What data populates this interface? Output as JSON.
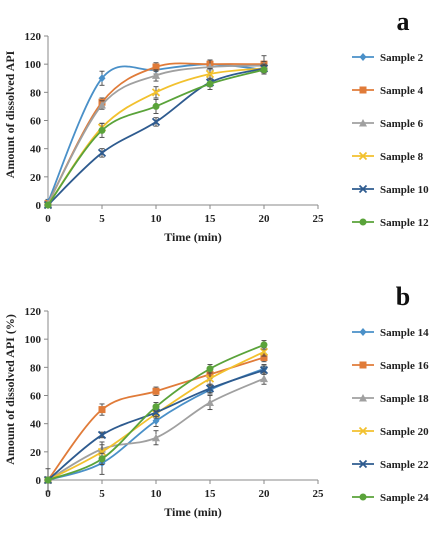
{
  "chart_data": [
    {
      "type": "line",
      "panel_label": "a",
      "xlabel": "Time (min)",
      "ylabel": "Amount of  dissolved  API",
      "xlim": [
        0,
        25
      ],
      "ylim": [
        0,
        120
      ],
      "xticks": [
        0,
        5,
        10,
        15,
        20,
        25
      ],
      "yticks": [
        0,
        20,
        40,
        60,
        80,
        100,
        120
      ],
      "x": [
        0,
        5,
        10,
        15,
        20
      ],
      "series": [
        {
          "name": "Sample 2",
          "color": "#4a90c8",
          "marker": "diamond",
          "values": [
            2,
            90,
            96,
            100,
            96
          ],
          "errors": [
            2,
            5,
            3,
            3,
            3
          ]
        },
        {
          "name": "Sample 4",
          "color": "#e07b39",
          "marker": "square",
          "values": [
            1,
            73,
            98,
            100,
            100
          ],
          "errors": [
            1,
            3,
            3,
            3,
            6
          ]
        },
        {
          "name": "Sample 6",
          "color": "#a0a0a0",
          "marker": "triangle",
          "values": [
            1,
            71,
            92,
            98,
            99
          ],
          "errors": [
            1,
            3,
            4,
            5,
            3
          ]
        },
        {
          "name": "Sample 8",
          "color": "#f2c12e",
          "marker": "x",
          "values": [
            0,
            55,
            80,
            93,
            97
          ],
          "errors": [
            1,
            3,
            4,
            4,
            3
          ]
        },
        {
          "name": "Sample 10",
          "color": "#2e5b8f",
          "marker": "x",
          "values": [
            0,
            37,
            59,
            87,
            97
          ],
          "errors": [
            1,
            3,
            3,
            3,
            3
          ]
        },
        {
          "name": "Sample 12",
          "color": "#5aa33a",
          "marker": "circle",
          "values": [
            0,
            53,
            70,
            86,
            96
          ],
          "errors": [
            1,
            5,
            5,
            4,
            3
          ]
        }
      ],
      "legend": "right"
    },
    {
      "type": "line",
      "panel_label": "b",
      "xlabel": "Time (min)",
      "ylabel": "Amount of  dissolved  API (%)",
      "xlim": [
        0,
        25
      ],
      "ylim": [
        0,
        120
      ],
      "xticks": [
        0,
        5,
        10,
        15,
        20,
        25
      ],
      "yticks": [
        0,
        20,
        40,
        60,
        80,
        100,
        120
      ],
      "x": [
        0,
        5,
        10,
        15,
        20
      ],
      "series": [
        {
          "name": "Sample 14",
          "color": "#4a90c8",
          "marker": "diamond",
          "values": [
            0,
            12,
            42,
            64,
            79
          ],
          "errors": [
            2,
            8,
            4,
            3,
            3
          ]
        },
        {
          "name": "Sample 16",
          "color": "#e07b39",
          "marker": "square",
          "values": [
            0,
            50,
            63,
            75,
            87
          ],
          "errors": [
            2,
            4,
            3,
            3,
            3
          ]
        },
        {
          "name": "Sample 18",
          "color": "#a0a0a0",
          "marker": "triangle",
          "values": [
            0,
            22,
            30,
            55,
            72
          ],
          "errors": [
            8,
            5,
            5,
            5,
            4
          ]
        },
        {
          "name": "Sample 20",
          "color": "#f2c12e",
          "marker": "x",
          "values": [
            0,
            20,
            47,
            72,
            91
          ],
          "errors": [
            2,
            5,
            3,
            4,
            3
          ]
        },
        {
          "name": "Sample 22",
          "color": "#2e5b8f",
          "marker": "x",
          "values": [
            0,
            32,
            48,
            65,
            78
          ],
          "errors": [
            2,
            2,
            3,
            3,
            3
          ]
        },
        {
          "name": "Sample 24",
          "color": "#5aa33a",
          "marker": "circle",
          "values": [
            0,
            15,
            52,
            79,
            96
          ],
          "errors": [
            2,
            4,
            3,
            3,
            3
          ]
        }
      ],
      "legend": "right"
    }
  ]
}
